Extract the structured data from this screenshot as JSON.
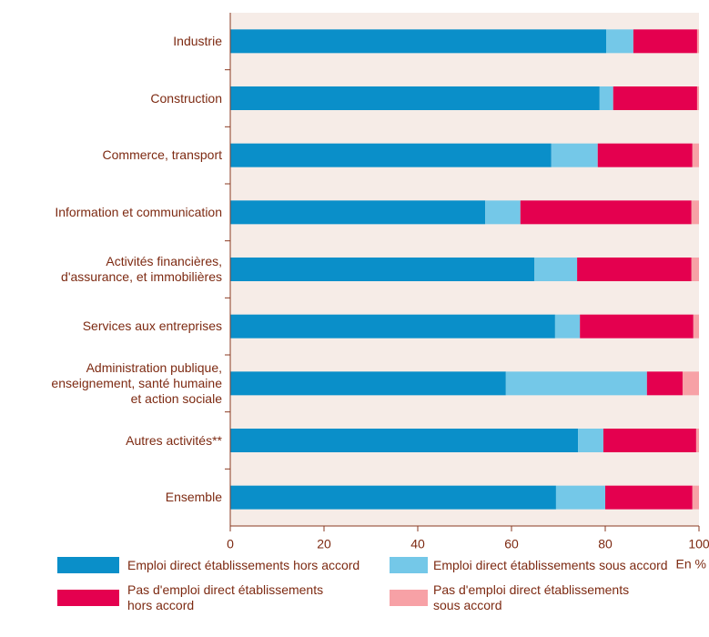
{
  "chart_data": {
    "type": "stacked-barh",
    "categories": [
      "Industrie",
      "Construction",
      "Commerce, transport",
      "Information et communication",
      "Activités financières,\nd'assurance, et immobilières",
      "Services aux entreprises",
      "Administration publique,\nenseignement, santé humaine\net action sociale",
      "Autres activités**",
      "Ensemble"
    ],
    "series": [
      {
        "name": "Emploi direct établissements hors accord",
        "color": "#0a8fc9",
        "values": [
          80.2,
          78.8,
          68.5,
          54.4,
          64.9,
          69.3,
          58.8,
          74.2,
          69.5
        ]
      },
      {
        "name": "Emploi direct établissements sous accord",
        "color": "#74c8e8",
        "values": [
          5.8,
          2.9,
          9.9,
          7.5,
          9.1,
          5.3,
          30.1,
          5.4,
          10.5
        ]
      },
      {
        "name": "Pas d'emploi direct établissements\nhors accord",
        "color": "#e4004f",
        "values": [
          13.6,
          17.9,
          20.2,
          36.5,
          24.4,
          24.2,
          7.6,
          19.8,
          18.6
        ]
      },
      {
        "name": "Pas d'emploi direct établissements\nsous accord",
        "color": "#f7a1a6",
        "values": [
          0.4,
          0.4,
          1.4,
          1.6,
          1.6,
          1.2,
          3.5,
          0.6,
          1.4
        ]
      }
    ],
    "xlabel": "En %",
    "xlim": [
      0,
      100
    ],
    "xticks": [
      0,
      20,
      40,
      60,
      80,
      100
    ]
  }
}
